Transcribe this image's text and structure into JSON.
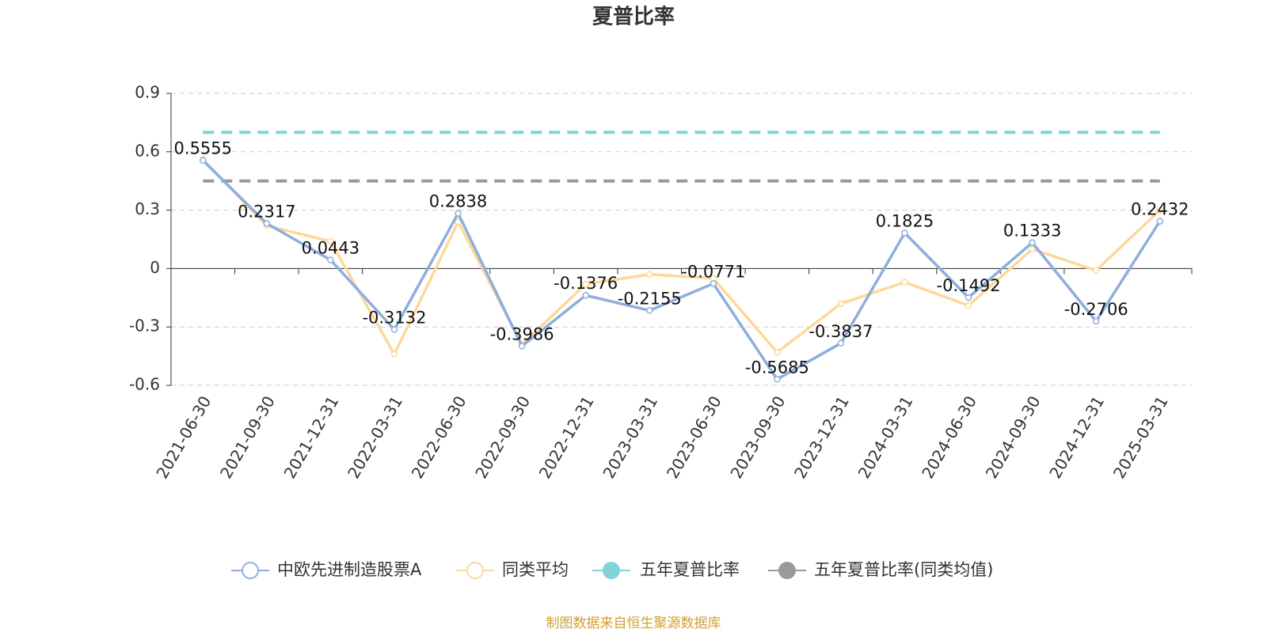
{
  "chart_data": {
    "type": "line",
    "title": "夏普比率",
    "categories": [
      "2021-06-30",
      "2021-09-30",
      "2021-12-31",
      "2022-03-31",
      "2022-06-30",
      "2022-09-30",
      "2022-12-31",
      "2023-03-31",
      "2023-06-30",
      "2023-09-30",
      "2023-12-31",
      "2024-03-31",
      "2024-06-30",
      "2024-09-30",
      "2024-12-31",
      "2025-03-31"
    ],
    "series": [
      {
        "name": "中欧先进制造股票A",
        "color": "#8eaedc",
        "values": [
          0.5555,
          0.2317,
          0.0443,
          -0.3132,
          0.2838,
          -0.3986,
          -0.1376,
          -0.2155,
          -0.0771,
          -0.5685,
          -0.3837,
          0.1825,
          -0.1492,
          0.1333,
          -0.2706,
          0.2432
        ]
      },
      {
        "name": "同类平均",
        "color": "#fcd99a",
        "values": [
          0.56,
          0.22,
          0.14,
          -0.44,
          0.24,
          -0.39,
          -0.08,
          -0.03,
          -0.05,
          -0.43,
          -0.18,
          -0.07,
          -0.19,
          0.1,
          -0.01,
          0.3
        ]
      }
    ],
    "reference_lines": [
      {
        "name": "五年夏普比率",
        "color": "#80d4d6",
        "value": 0.7
      },
      {
        "name": "五年夏普比率(同类均值)",
        "color": "#999999",
        "value": 0.45
      }
    ],
    "ylim": [
      -0.6,
      0.9
    ],
    "yticks": [
      -0.6,
      -0.3,
      0,
      0.3,
      0.6,
      0.9
    ],
    "grid": true,
    "source": "制图数据来自恒生聚源数据库"
  }
}
